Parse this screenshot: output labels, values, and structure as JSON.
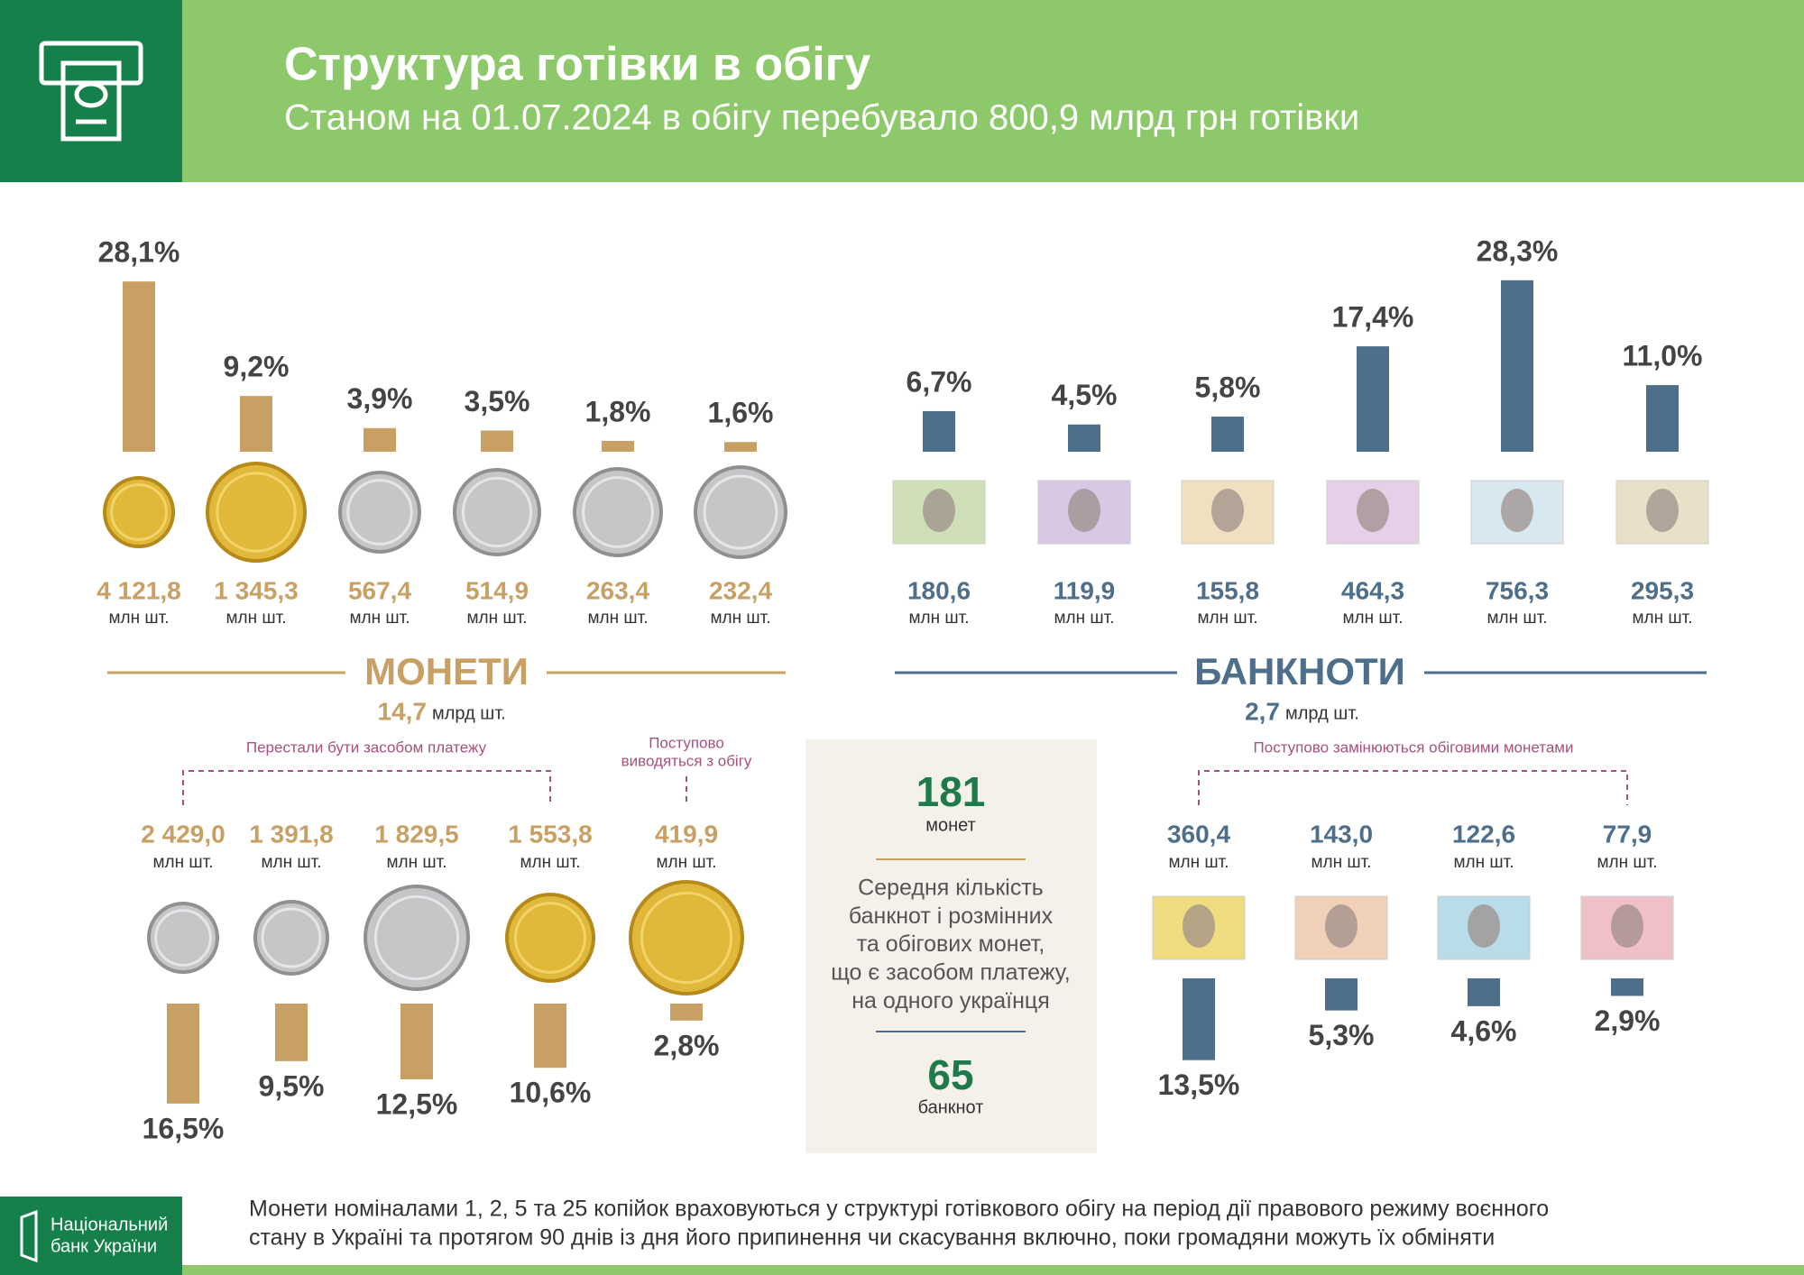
{
  "header": {
    "title": "Структура готівки в обігу",
    "subtitle": "Станом на 01.07.2024 в обігу перебувало 800,9 млрд грн готівки"
  },
  "chart_data": [
    {
      "type": "bar",
      "categories": [
        null,
        null,
        null,
        null,
        null,
        null
      ],
      "values": [
        28.1,
        9.2,
        3.9,
        3.5,
        1.8,
        1.6
      ],
      "value_labels": [
        "28,1%",
        "9,2%",
        "3,9%",
        "3,5%",
        "1,8%",
        "1,6%"
      ],
      "counts": [
        "4 121,8",
        "1 345,3",
        "567,4",
        "514,9",
        "263,4",
        "232,4"
      ],
      "count_unit": "млн шт.",
      "color": "#c9a063"
    },
    {
      "type": "bar",
      "categories": [
        null,
        null,
        null,
        null,
        null,
        null
      ],
      "values": [
        6.7,
        4.5,
        5.8,
        17.4,
        28.3,
        11.0
      ],
      "value_labels": [
        "6,7%",
        "4,5%",
        "5,8%",
        "17,4%",
        "28,3%",
        "11,0%"
      ],
      "counts": [
        "180,6",
        "119,9",
        "155,8",
        "464,3",
        "756,3",
        "295,3"
      ],
      "count_unit": "млн шт.",
      "color": "#4d6f8c"
    },
    {
      "type": "bar",
      "categories": [
        null,
        null,
        null,
        null,
        null
      ],
      "values": [
        16.5,
        9.5,
        12.5,
        10.6,
        2.8
      ],
      "value_labels": [
        "16,5%",
        "9,5%",
        "12,5%",
        "10,6%",
        "2,8%"
      ],
      "counts": [
        "2 429,0",
        "1 391,8",
        "1 829,5",
        "1 553,8",
        "419,9"
      ],
      "count_unit": "млн шт.",
      "color": "#c9a063"
    },
    {
      "type": "bar",
      "categories": [
        null,
        null,
        null,
        null
      ],
      "values": [
        13.5,
        5.3,
        4.6,
        2.9
      ],
      "value_labels": [
        "13,5%",
        "5,3%",
        "4,6%",
        "2,9%"
      ],
      "counts": [
        "360,4",
        "143,0",
        "122,6",
        "77,9"
      ],
      "count_unit": "млн шт.",
      "color": "#4d6f8c"
    }
  ],
  "sections": [
    {
      "title": "МОНЕТИ",
      "total": "14,7",
      "unit": "млрд шт."
    },
    {
      "title": "БАНКНОТИ",
      "total": "2,7",
      "unit": "млрд шт."
    }
  ],
  "annotations": [
    [
      "Перестали бути засобом платежу"
    ],
    [
      "Поступово",
      "виводяться з обігу"
    ],
    [
      "Поступово замінюються обіговими монетами"
    ]
  ],
  "center_box": {
    "coins": "181",
    "coins_label": "монет",
    "text": [
      "Середня кількість",
      "банкнот і розмінних",
      "та обігових монет,",
      "що є засобом платежу,",
      "на одного українця"
    ],
    "notes": "65",
    "notes_label": "банкнот"
  },
  "footer": {
    "logo": [
      "Національний",
      "банк України"
    ],
    "note": [
      "Монети номіналами 1, 2, 5 та 25 копійок враховуються у структурі готівкового обігу на період дії правового режиму воєнного",
      "стану в Україні та протягом 90 днів із дня його припинення чи скасування включно, поки громадяни можуть їх обміняти"
    ]
  }
}
